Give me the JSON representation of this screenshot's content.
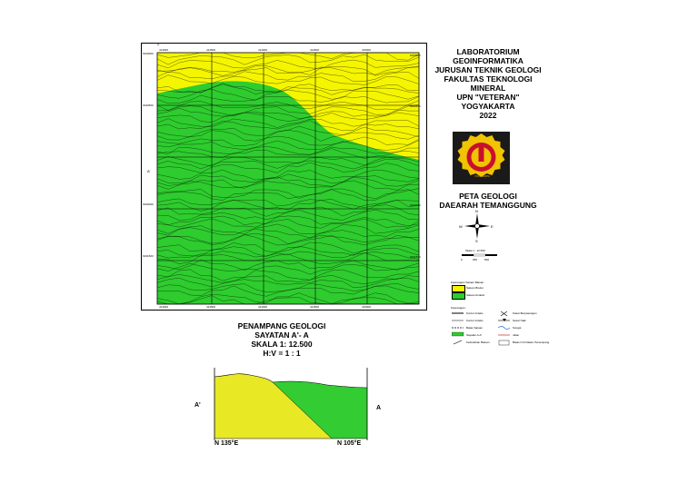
{
  "lab_title": [
    "LABORATORIUM",
    "GEOINFORMATIKA",
    "JURUSAN TEKNIK GEOLOGI",
    "FAKULTAS TEKNOLOGI",
    "MINERAL",
    "UPN \"VETERAN\"",
    "YOGYAKARTA",
    "2022"
  ],
  "map_title": [
    "PETA GEOLOGI",
    "DAEARAH TEMANGGUNG"
  ],
  "logo": {
    "name": "upn-veteran-logo",
    "text": "YOGYAKARTA"
  },
  "compass": {
    "n": "N",
    "s": "S",
    "e": "E",
    "w": "W"
  },
  "scale_bar": {
    "label": "Skala 1 : 12.500",
    "ticks": [
      "0",
      "250",
      "500"
    ]
  },
  "map_labels": {
    "section_a": "A",
    "section_a_prime": "A'"
  },
  "coords": {
    "top": [
      "413000",
      "413500",
      "414000",
      "414500",
      "415000"
    ],
    "bottom": [
      "413000",
      "413500",
      "414000",
      "414500",
      "415000"
    ],
    "left": [
      "9193000",
      "9192500",
      "9192000",
      "9191500"
    ],
    "right": [
      "9193000",
      "9192500",
      "9192000",
      "9191500"
    ]
  },
  "legend_units": {
    "title": "Keterangan Satuan Batuan :",
    "items": [
      {
        "label": "Satuan Breksi",
        "color": "#f5f500"
      },
      {
        "label": "Satuan Andesit",
        "color": "#2ecc2e"
      }
    ]
  },
  "legend_symbols": {
    "title": "Keterangan :",
    "left": [
      "Kontur Indeks",
      "Kontur Indeks",
      "Batas Satuan",
      "Sayatan A-A'",
      "Kedudukan Batuan"
    ],
    "right": [
      "Kekar Berpasangan",
      "Sesar Naik",
      "Sungai",
      "Jalan",
      "Batas N-S Dalam Penampang"
    ]
  },
  "section_title": [
    "PENAMPANG GEOLOGI",
    "SAYATAN A'- A",
    "SKALA 1: 12.500",
    "H:V = 1 : 1"
  ],
  "section_labels": {
    "left_end": "A'",
    "right_end": "A",
    "left_bearing": "N 135°E",
    "right_bearing": "N 105°E"
  },
  "colors": {
    "breksi": "#f5f500",
    "andesit": "#2ecc2e",
    "section_breksi": "#e8e825",
    "section_andesit": "#33cc33"
  }
}
